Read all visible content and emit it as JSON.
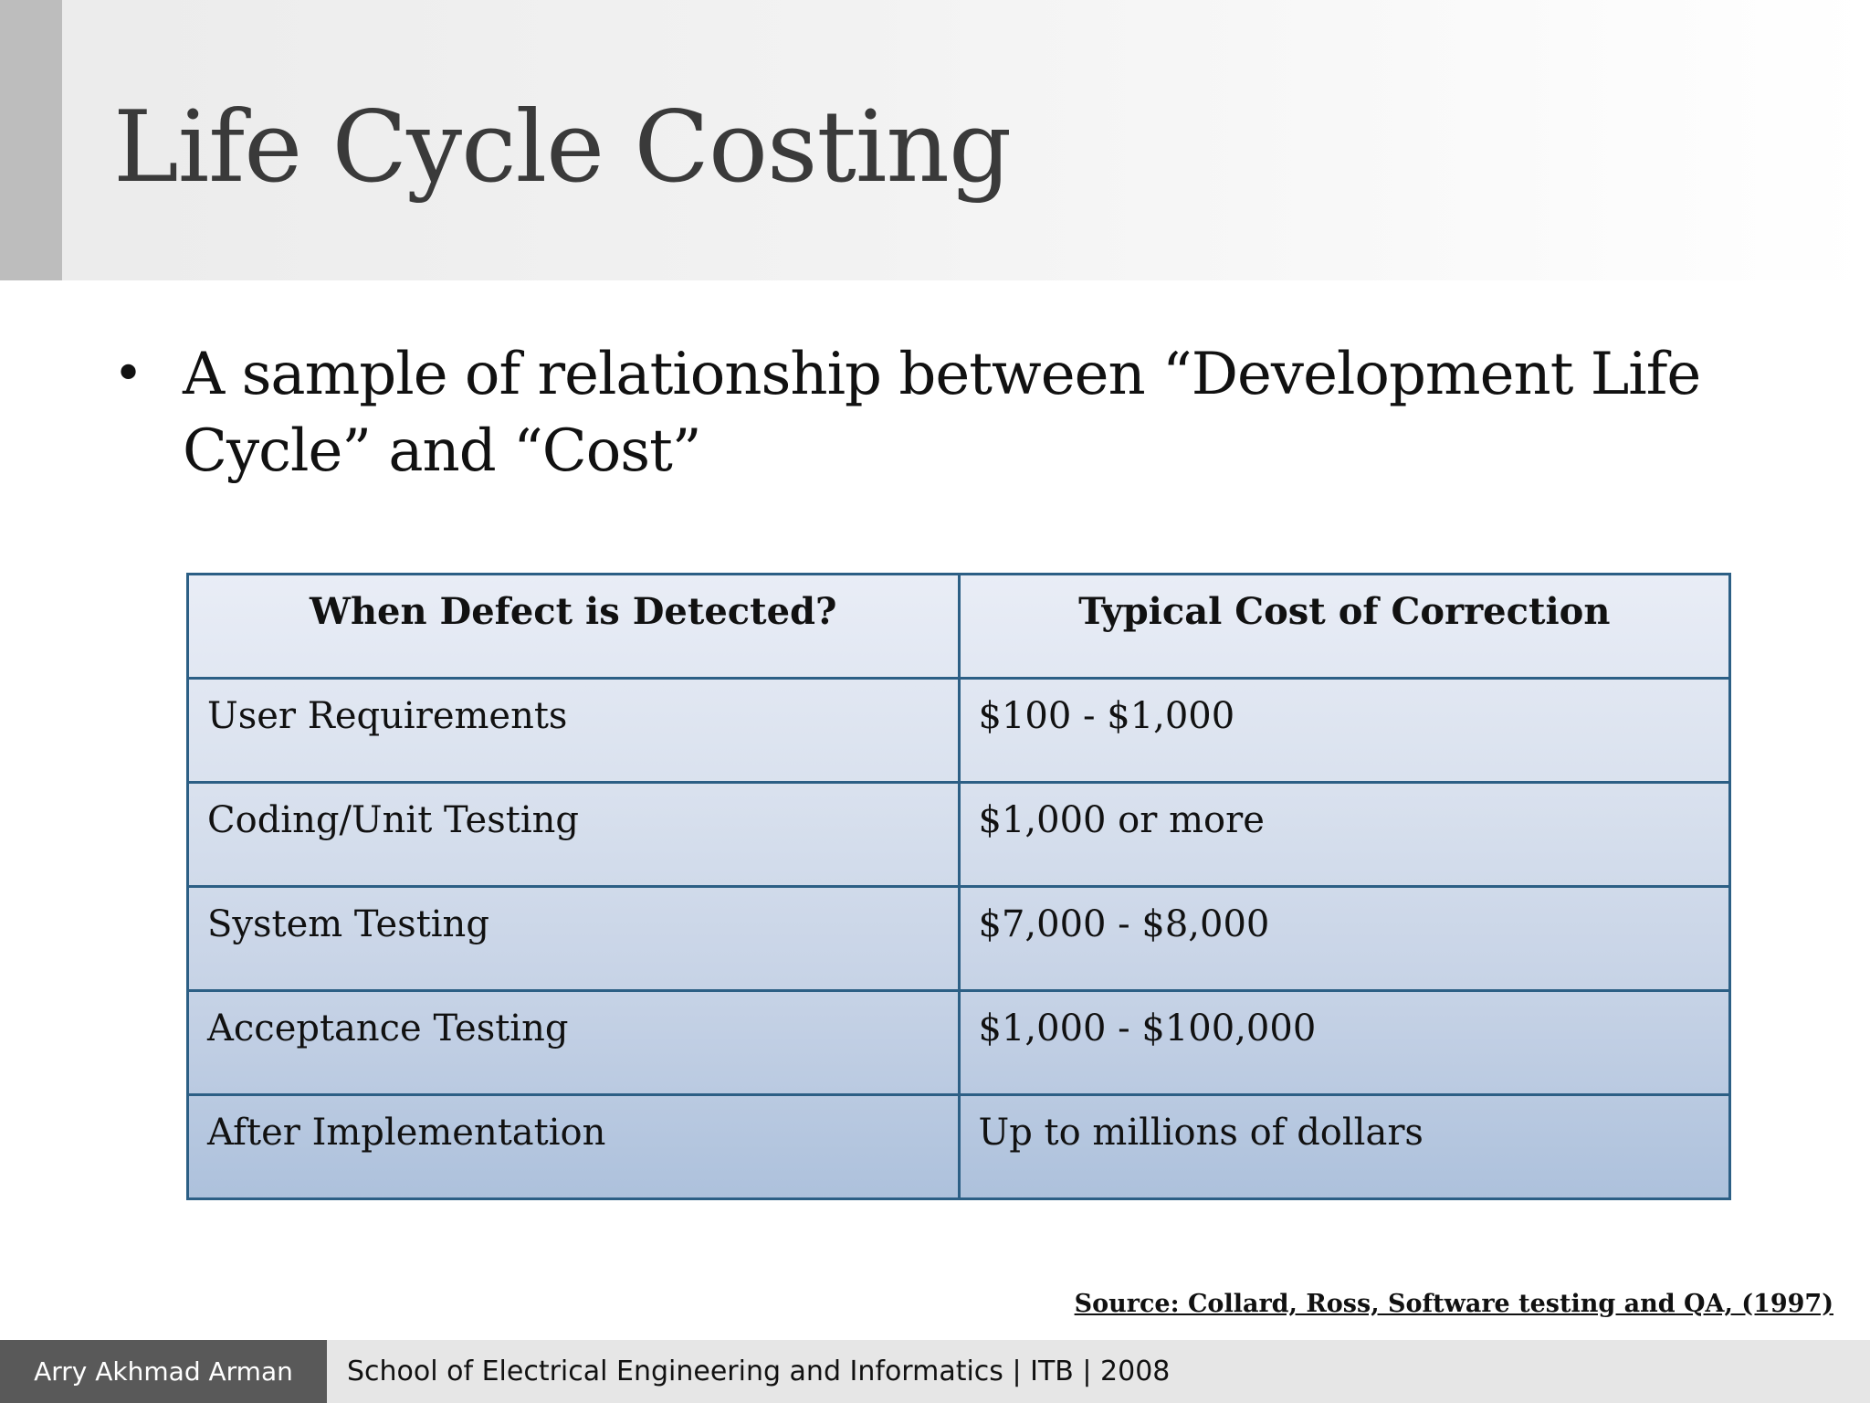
{
  "slide": {
    "title": "Life Cycle Costing",
    "bullet": "A sample of relationship between “Development Life Cycle” and “Cost”"
  },
  "table": {
    "headers": [
      "When Defect is Detected?",
      "Typical Cost of Correction"
    ],
    "rows": [
      [
        "User Requirements",
        "$100 - $1,000"
      ],
      [
        "Coding/Unit Testing",
        "$1,000 or more"
      ],
      [
        "System Testing",
        "$7,000 - $8,000"
      ],
      [
        "Acceptance Testing",
        "$1,000 - $100,000"
      ],
      [
        "After Implementation",
        "Up to millions of dollars"
      ]
    ]
  },
  "source": "Source: Collard, Ross, Software testing and QA, (1997)",
  "footer": {
    "author": "Arry Akhmad Arman",
    "institution": "School of Electrical Engineering and Informatics | ITB | 2008"
  },
  "colors": {
    "title_text": "#3a3a3a",
    "title_accent": "#bdbdbd",
    "table_border": "#2c5f85",
    "footer_author_bg": "#595959",
    "footer_bg": "#e6e6e6"
  }
}
